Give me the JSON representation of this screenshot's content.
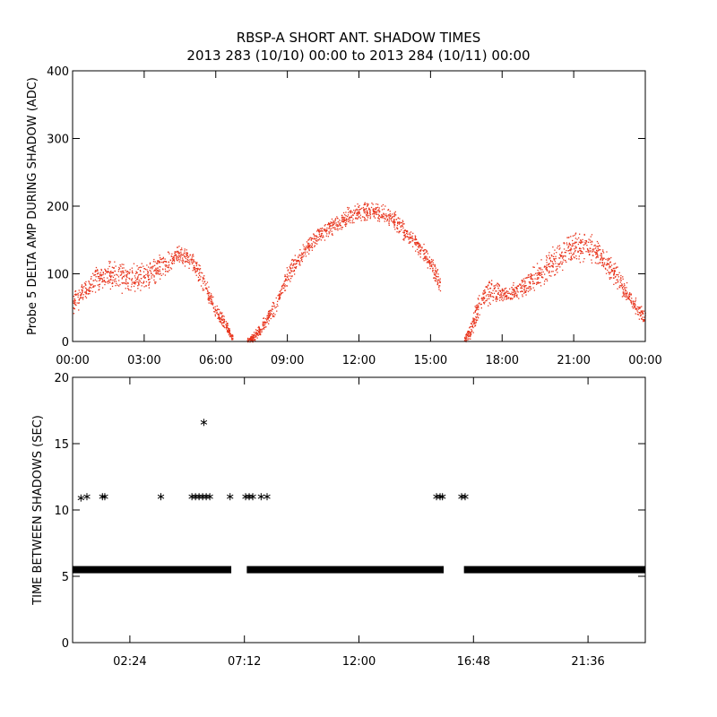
{
  "title": "RBSP-A SHORT ANT. SHADOW TIMES",
  "subtitle": "2013 283 (10/10) 00:00 to 2013 284 (10/11) 00:00",
  "colors": {
    "shadow_amp": "#e8341c",
    "shadow_time": "#000000",
    "axes": "#000000"
  },
  "chart_data": [
    {
      "type": "scatter",
      "ylabel": "Probe 5 DELTA AMP DURING SHADOW (ADC)",
      "xlim": [
        0,
        24
      ],
      "ylim": [
        0,
        400
      ],
      "xticks": [
        0,
        3,
        6,
        9,
        12,
        15,
        18,
        21,
        24
      ],
      "xtick_labels": [
        "00:00",
        "03:00",
        "06:00",
        "09:00",
        "12:00",
        "15:00",
        "18:00",
        "21:00",
        "00:00"
      ],
      "yticks": [
        0,
        100,
        200,
        300,
        400
      ],
      "ytick_labels": [
        "0",
        "100",
        "200",
        "300",
        "400"
      ],
      "marker": "dot",
      "series": [
        {
          "x": [
            0.0,
            0.5,
            1.0,
            1.5,
            2.0,
            2.5,
            3.0,
            3.5,
            4.0,
            4.5,
            5.0,
            5.5,
            6.0,
            6.4,
            6.7,
            7.3,
            7.6,
            8.0,
            8.5,
            9.0,
            9.5,
            10.0,
            10.5,
            11.0,
            11.5,
            12.0,
            12.5,
            13.0,
            13.5,
            14.0,
            14.5,
            15.0,
            15.4,
            16.4,
            16.7,
            17.0,
            17.5,
            18.0,
            18.5,
            19.0,
            19.5,
            20.0,
            20.5,
            21.0,
            21.5,
            22.0,
            22.5,
            23.0,
            23.5,
            24.0
          ],
          "y": [
            55,
            75,
            95,
            100,
            95,
            92,
            95,
            105,
            118,
            130,
            120,
            85,
            45,
            25,
            5,
            2,
            8,
            25,
            55,
            100,
            125,
            148,
            162,
            175,
            185,
            192,
            195,
            190,
            178,
            160,
            140,
            115,
            85,
            2,
            20,
            55,
            75,
            70,
            75,
            85,
            100,
            115,
            128,
            140,
            142,
            130,
            110,
            85,
            55,
            35
          ],
          "spread": [
            20,
            20,
            22,
            25,
            25,
            25,
            22,
            22,
            18,
            15,
            15,
            15,
            12,
            10,
            5,
            4,
            8,
            12,
            15,
            18,
            18,
            15,
            15,
            15,
            15,
            15,
            15,
            15,
            15,
            15,
            15,
            15,
            15,
            5,
            15,
            20,
            20,
            15,
            15,
            20,
            22,
            25,
            25,
            25,
            25,
            25,
            22,
            18,
            15,
            12
          ]
        }
      ]
    },
    {
      "type": "scatter",
      "ylabel": "TIME BETWEEN SHADOWS (SEC)",
      "xlim": [
        0,
        24
      ],
      "ylim": [
        0,
        20
      ],
      "xticks": [
        2.4,
        7.2,
        12.0,
        16.8,
        21.6
      ],
      "xtick_labels": [
        "02:24",
        "07:12",
        "12:00",
        "16:48",
        "21:36"
      ],
      "yticks": [
        0,
        5,
        10,
        15,
        20
      ],
      "ytick_labels": [
        "0",
        "5",
        "10",
        "15",
        "20"
      ],
      "marker": "asterisk",
      "baseline": {
        "y": 5.5,
        "segments": [
          [
            0.0,
            6.65
          ],
          [
            7.3,
            15.55
          ],
          [
            16.4,
            24.0
          ]
        ]
      },
      "series": [
        {
          "x": [
            0.35,
            0.6,
            1.25,
            1.35,
            3.7,
            5.0,
            5.15,
            5.3,
            5.45,
            5.6,
            5.75,
            5.5,
            6.6,
            7.25,
            7.4,
            7.55,
            7.9,
            8.15,
            15.25,
            15.4,
            15.5,
            16.3,
            16.45
          ],
          "y": [
            10.9,
            11.0,
            11.0,
            11.0,
            11.0,
            11.0,
            11.0,
            11.0,
            11.0,
            11.0,
            11.0,
            16.6,
            11.0,
            11.0,
            11.0,
            11.0,
            11.0,
            11.0,
            11.0,
            11.0,
            11.0,
            11.0,
            11.0
          ]
        }
      ]
    }
  ]
}
